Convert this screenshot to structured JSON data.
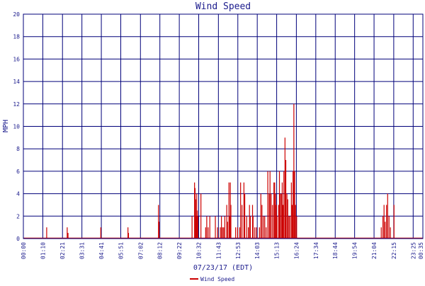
{
  "chart_data": {
    "type": "bar",
    "title": "Wind Speed",
    "xlabel": "07/23/17 (EDT)",
    "ylabel": "MPH",
    "ylim": [
      0,
      20
    ],
    "yticks": [
      0,
      2,
      4,
      6,
      8,
      10,
      12,
      14,
      16,
      18,
      20
    ],
    "xlim": [
      0,
      1440
    ],
    "xticks": [
      {
        "label": "00:00",
        "minute": 0
      },
      {
        "label": "01:10",
        "minute": 70
      },
      {
        "label": "02:21",
        "minute": 141
      },
      {
        "label": "03:31",
        "minute": 211
      },
      {
        "label": "04:41",
        "minute": 281
      },
      {
        "label": "05:51",
        "minute": 351
      },
      {
        "label": "07:02",
        "minute": 422
      },
      {
        "label": "08:12",
        "minute": 492
      },
      {
        "label": "09:22",
        "minute": 562
      },
      {
        "label": "10:32",
        "minute": 632
      },
      {
        "label": "11:43",
        "minute": 703
      },
      {
        "label": "12:53",
        "minute": 773
      },
      {
        "label": "14:03",
        "minute": 843
      },
      {
        "label": "15:13",
        "minute": 913
      },
      {
        "label": "16:24",
        "minute": 984
      },
      {
        "label": "17:34",
        "minute": 1054
      },
      {
        "label": "18:44",
        "minute": 1124
      },
      {
        "label": "19:54",
        "minute": 1194
      },
      {
        "label": "21:04",
        "minute": 1264
      },
      {
        "label": "22:15",
        "minute": 1335
      },
      {
        "label": "23:25",
        "minute": 1405
      },
      {
        "label": "00:35",
        "minute": 1440
      }
    ],
    "grid": true,
    "legend": "bottom-left",
    "series": [
      {
        "name": "Wind Speed",
        "color": "#cc0000",
        "points": [
          [
            84,
            1
          ],
          [
            158,
            1
          ],
          [
            161,
            0.5
          ],
          [
            279,
            1
          ],
          [
            377,
            1
          ],
          [
            379,
            0.5
          ],
          [
            487,
            3
          ],
          [
            489,
            1.5
          ],
          [
            608,
            2
          ],
          [
            617,
            5
          ],
          [
            619,
            4.5
          ],
          [
            621,
            3.5
          ],
          [
            623,
            2
          ],
          [
            625,
            4
          ],
          [
            627,
            2.5
          ],
          [
            629,
            2
          ],
          [
            640,
            4
          ],
          [
            657,
            1
          ],
          [
            661,
            2
          ],
          [
            666,
            1
          ],
          [
            672,
            2
          ],
          [
            692,
            2
          ],
          [
            700,
            1
          ],
          [
            710,
            1
          ],
          [
            714,
            2
          ],
          [
            718,
            1
          ],
          [
            722,
            1
          ],
          [
            726,
            2
          ],
          [
            733,
            3
          ],
          [
            736,
            1.5
          ],
          [
            741,
            5
          ],
          [
            743,
            2
          ],
          [
            746,
            5
          ],
          [
            748,
            3
          ],
          [
            765,
            1
          ],
          [
            772,
            1
          ],
          [
            780,
            1
          ],
          [
            783,
            5
          ],
          [
            788,
            3
          ],
          [
            795,
            5
          ],
          [
            798,
            4
          ],
          [
            805,
            2
          ],
          [
            811,
            1
          ],
          [
            815,
            3
          ],
          [
            818,
            2
          ],
          [
            826,
            3
          ],
          [
            828,
            2
          ],
          [
            834,
            1
          ],
          [
            840,
            1
          ],
          [
            851,
            1
          ],
          [
            856,
            4
          ],
          [
            860,
            3
          ],
          [
            865,
            2
          ],
          [
            870,
            2
          ],
          [
            875,
            1
          ],
          [
            881,
            6
          ],
          [
            886,
            4
          ],
          [
            889,
            6
          ],
          [
            893,
            4
          ],
          [
            898,
            3
          ],
          [
            903,
            5
          ],
          [
            906,
            5
          ],
          [
            909,
            4
          ],
          [
            912,
            3
          ],
          [
            914,
            2
          ],
          [
            920,
            3
          ],
          [
            923,
            6
          ],
          [
            926,
            4
          ],
          [
            930,
            4
          ],
          [
            933,
            5
          ],
          [
            936,
            3
          ],
          [
            939,
            6
          ],
          [
            943,
            9
          ],
          [
            946,
            7
          ],
          [
            950,
            4
          ],
          [
            953,
            3.5
          ],
          [
            957,
            2
          ],
          [
            961,
            2
          ],
          [
            966,
            5
          ],
          [
            969,
            3
          ],
          [
            972,
            6
          ],
          [
            975,
            12
          ],
          [
            978,
            6
          ],
          [
            981,
            3
          ],
          [
            985,
            2
          ],
          [
            1290,
            1
          ],
          [
            1296,
            2
          ],
          [
            1300,
            3
          ],
          [
            1304,
            1.5
          ],
          [
            1309,
            3
          ],
          [
            1313,
            4
          ],
          [
            1318,
            2
          ],
          [
            1323,
            1
          ],
          [
            1336,
            3
          ]
        ]
      }
    ]
  }
}
